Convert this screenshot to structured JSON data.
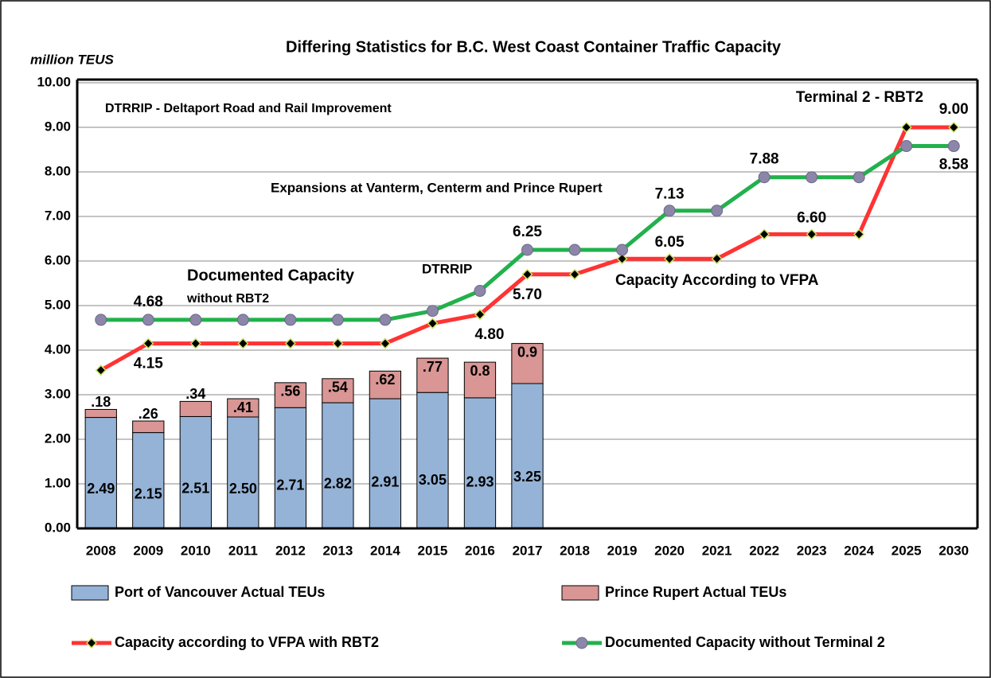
{
  "chart_data": {
    "type": "bar",
    "title": "Differing Statistics for B.C. West Coast Container Traffic Capacity",
    "y_axis_label": "million TEUS",
    "categories": [
      "2008",
      "2009",
      "2010",
      "2011",
      "2012",
      "2013",
      "2014",
      "2015",
      "2016",
      "2017",
      "2018",
      "2019",
      "2020",
      "2021",
      "2022",
      "2023",
      "2024",
      "2025",
      "2030"
    ],
    "ylim": [
      0,
      10
    ],
    "yticks": [
      {
        "value": 0,
        "label": "0.00"
      },
      {
        "value": 1,
        "label": "1.00"
      },
      {
        "value": 2,
        "label": "2.00"
      },
      {
        "value": 3,
        "label": "3.00"
      },
      {
        "value": 4,
        "label": "4.00"
      },
      {
        "value": 5,
        "label": "5.00"
      },
      {
        "value": 6,
        "label": "6.00"
      },
      {
        "value": 7,
        "label": "7.00"
      },
      {
        "value": 8,
        "label": "8.00"
      },
      {
        "value": 9,
        "label": "9.00"
      },
      {
        "value": 10,
        "label": "10.00"
      }
    ],
    "grid": true,
    "legend": "bottom",
    "series": [
      {
        "name": "Port of Vancouver Actual TEUs",
        "type": "bar",
        "color": "#95b3d7",
        "values": [
          2.49,
          2.15,
          2.51,
          2.5,
          2.71,
          2.82,
          2.91,
          3.05,
          2.93,
          3.25,
          null,
          null,
          null,
          null,
          null,
          null,
          null,
          null,
          null
        ],
        "value_labels": [
          "2.49",
          "2.15",
          "2.51",
          "2.50",
          "2.71",
          "2.82",
          "2.91",
          "3.05",
          "2.93",
          "3.25",
          null,
          null,
          null,
          null,
          null,
          null,
          null,
          null,
          null
        ]
      },
      {
        "name": "Prince Rupert Actual TEUs",
        "type": "bar",
        "color": "#d99694",
        "values": [
          0.18,
          0.26,
          0.34,
          0.41,
          0.56,
          0.54,
          0.62,
          0.77,
          0.8,
          0.9,
          null,
          null,
          null,
          null,
          null,
          null,
          null,
          null,
          null
        ],
        "value_labels": [
          ".18",
          ".26",
          ".34",
          ".41",
          ".56",
          ".54",
          ".62",
          ".77",
          "0.8",
          "0.9",
          null,
          null,
          null,
          null,
          null,
          null,
          null,
          null,
          null
        ]
      },
      {
        "name": "Capacity according to VFPA with RBT2",
        "type": "line",
        "color": "#ff3333",
        "marker": "diamond",
        "values": [
          3.55,
          4.15,
          4.15,
          4.15,
          4.15,
          4.15,
          4.15,
          4.6,
          4.8,
          5.7,
          5.7,
          6.05,
          6.05,
          6.05,
          6.6,
          6.6,
          6.6,
          9.0,
          9.0
        ],
        "value_labels": [
          null,
          "4.15",
          null,
          null,
          null,
          null,
          null,
          null,
          "4.80",
          "5.70",
          null,
          null,
          "6.05",
          null,
          null,
          "6.60",
          null,
          null,
          "9.00"
        ]
      },
      {
        "name": "Documented Capacity without Terminal 2",
        "type": "line",
        "color": "#22b14c",
        "marker": "circle",
        "values": [
          4.68,
          4.68,
          4.68,
          4.68,
          4.68,
          4.68,
          4.68,
          4.88,
          5.33,
          6.25,
          6.25,
          6.25,
          7.13,
          7.13,
          7.88,
          7.88,
          7.88,
          8.58,
          8.58
        ],
        "value_labels": [
          null,
          "4.68",
          null,
          null,
          null,
          null,
          null,
          null,
          null,
          "6.25",
          null,
          null,
          "7.13",
          null,
          "7.88",
          null,
          null,
          null,
          "8.58"
        ]
      }
    ],
    "annotations": [
      {
        "text": "DTRRIP - Deltaport Road and Rail Improvement",
        "color": "#000000"
      },
      {
        "text": "Terminal 2 - RBT2",
        "color": "#000000"
      },
      {
        "text": "Expansions at Vanterm, Centerm and Prince Rupert",
        "color": "#000000"
      },
      {
        "text": "Documented Capacity",
        "color": "#22b14c"
      },
      {
        "text": "without RBT2",
        "color": "#22b14c"
      },
      {
        "text": "DTRRIP",
        "color": "#000000"
      },
      {
        "text": "Capacity According to VFPA",
        "color": "#ff3333"
      }
    ]
  }
}
